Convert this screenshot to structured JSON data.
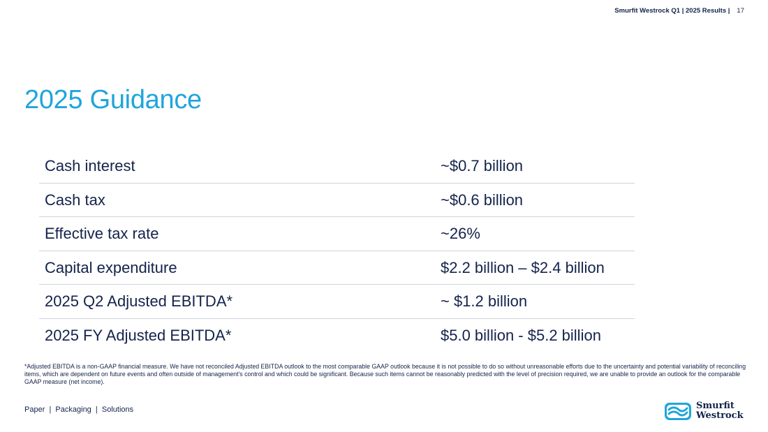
{
  "header": {
    "brand": "Smurfit Westrock Q1 | 2025 Results |",
    "page_number": "17"
  },
  "title": "2025 Guidance",
  "guidance": [
    {
      "label": "Cash interest",
      "value": "~$0.7 billion"
    },
    {
      "label": "Cash tax",
      "value": "~$0.6 billion"
    },
    {
      "label": "Effective tax rate",
      "value": "~26%"
    },
    {
      "label": "Capital expenditure",
      "value": "$2.2 billion – $2.4 billion"
    },
    {
      "label": "2025 Q2 Adjusted EBITDA*",
      "value": "~ $1.2 billion"
    },
    {
      "label": "2025 FY Adjusted EBITDA*",
      "value": "$5.0 billion - $5.2 billion"
    }
  ],
  "footnote": "*Adjusted EBITDA is a non-GAAP financial measure. We have not reconciled Adjusted EBITDA outlook to the most comparable GAAP outlook because it is not possible to do so without unreasonable efforts due to the uncertainty and potential variability of reconciling items, which are dependent on future events and often outside of management's control and which could be significant. Because such items cannot be reasonably predicted with the level of precision required, we are unable to provide an outlook for the comparable GAAP measure (net income).",
  "footer": {
    "tagline": "Paper  |  Packaging  |  Solutions"
  },
  "logo": {
    "line1": "Smurfit",
    "line2": "Westrock",
    "icon": "smurfit-westrock-logo-icon",
    "colors": {
      "mark": "#1fa5dc",
      "text": "#14234b"
    }
  },
  "colors": {
    "title": "#1fa5dc",
    "text": "#14234b",
    "divider": "#cfd3da"
  }
}
